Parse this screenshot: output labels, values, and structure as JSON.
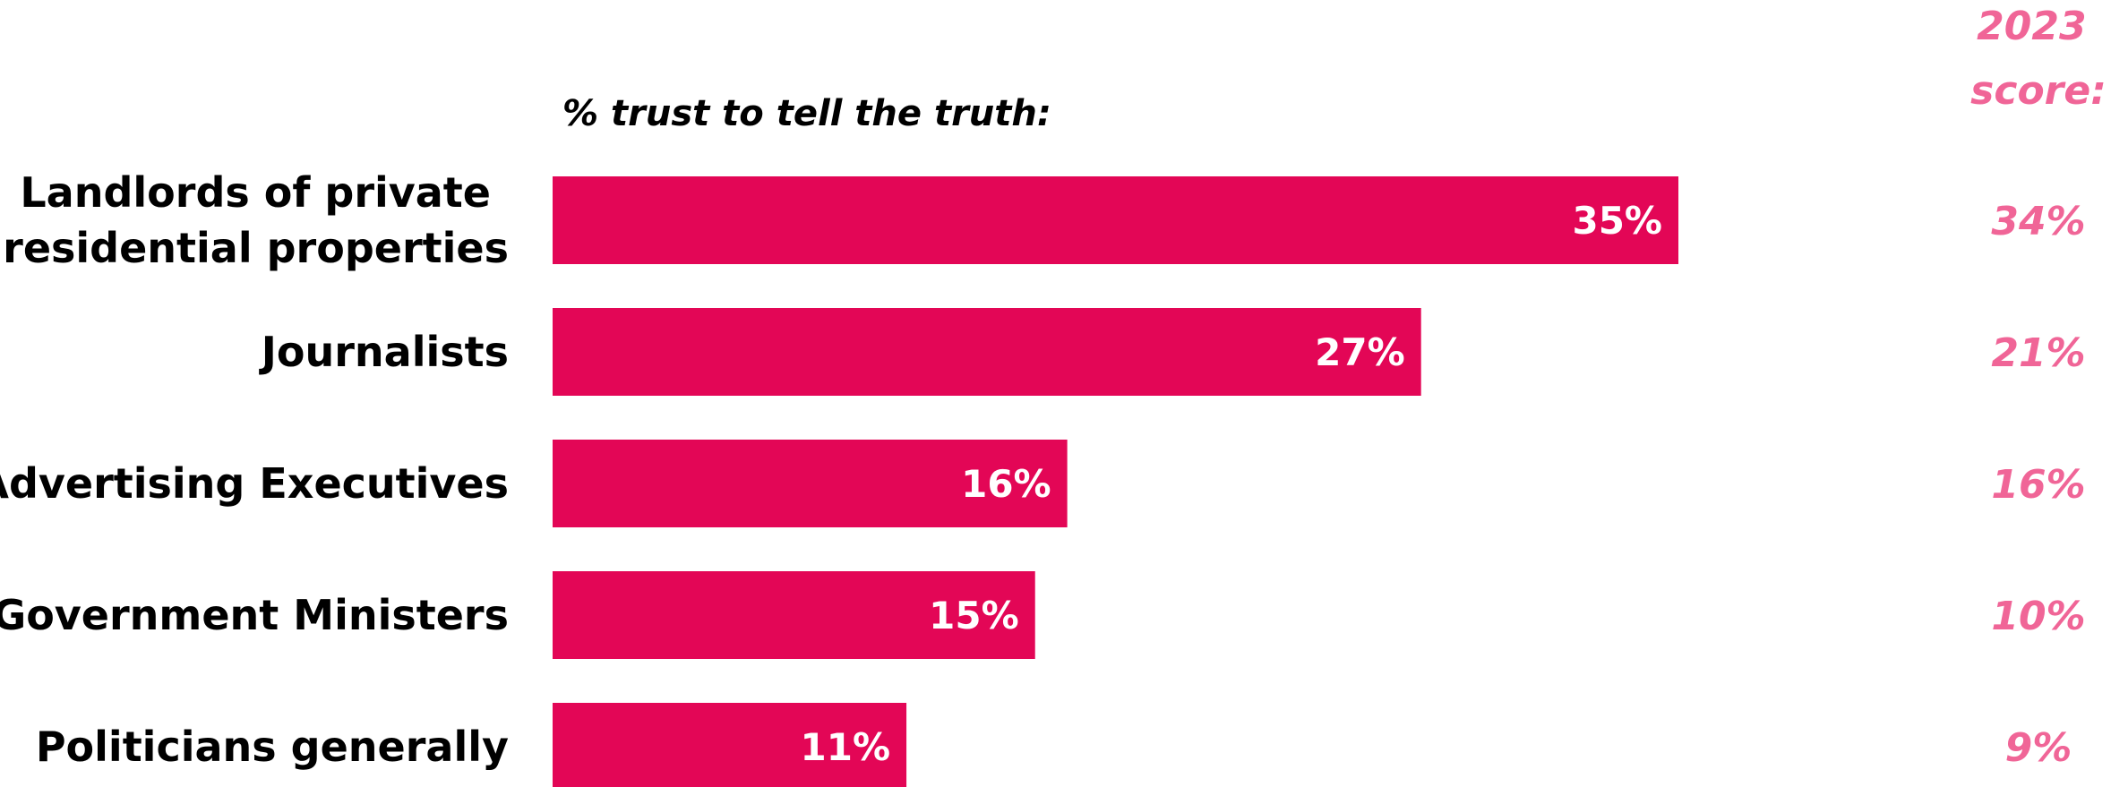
{
  "colors": {
    "bar": "#e30656",
    "bar_label": "#ffffff",
    "category_text": "#000000",
    "previous_score": "#f06597"
  },
  "chart_data": {
    "type": "bar",
    "orientation": "horizontal",
    "subtitle": "% trust to tell the truth:",
    "categories": [
      "Landlords of private residential properties",
      "Journalists",
      "Advertising Executives",
      "Government Ministers",
      "Politicians generally"
    ],
    "category_lines": [
      [
        "Landlords of private",
        "residential properties"
      ],
      [
        "Journalists"
      ],
      [
        "Advertising Executives"
      ],
      [
        "Government Ministers"
      ],
      [
        "Politicians generally"
      ]
    ],
    "values": [
      35,
      27,
      16,
      15,
      11
    ],
    "value_labels": [
      "35%",
      "27%",
      "16%",
      "15%",
      "11%"
    ],
    "previous": {
      "header_lines": [
        "2023",
        "score:"
      ],
      "values": [
        34,
        21,
        16,
        10,
        9
      ],
      "labels": [
        "34%",
        "21%",
        "16%",
        "10%",
        "9%"
      ]
    },
    "xlim": [
      0,
      35
    ],
    "grid": false,
    "legend": "none"
  }
}
